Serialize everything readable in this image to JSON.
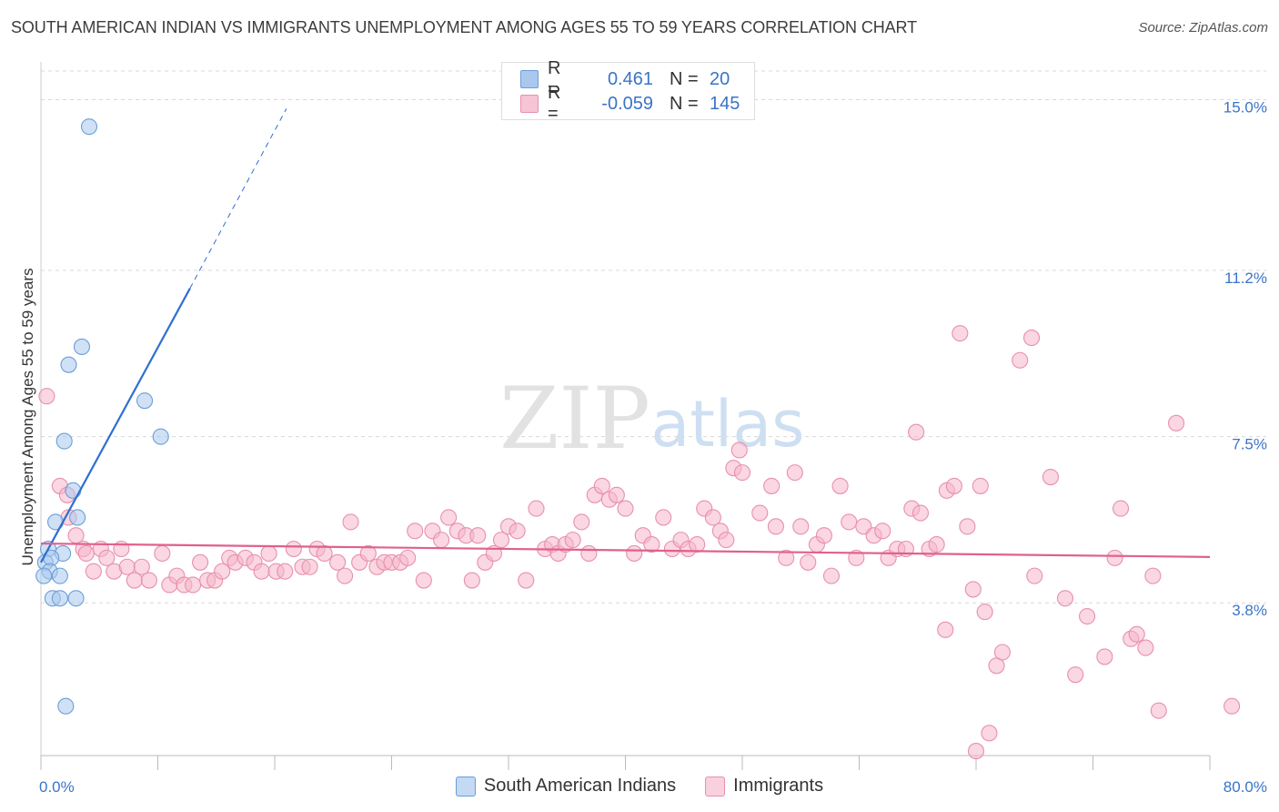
{
  "title": "SOUTH AMERICAN INDIAN VS IMMIGRANTS UNEMPLOYMENT AMONG AGES 55 TO 59 YEARS CORRELATION CHART",
  "source": "Source: ZipAtlas.com",
  "watermark": {
    "zip": "ZIP",
    "atlas": "atlas"
  },
  "legend": {
    "r_label": "R =",
    "n_label": "N =",
    "rows": [
      {
        "r": "0.461",
        "n": "20"
      },
      {
        "r": "-0.059",
        "n": "145"
      }
    ]
  },
  "colors": {
    "blue_fill": "#aac8ee",
    "blue_stroke": "#6a9fd8",
    "blue_line": "#2f6fd0",
    "pink_fill": "#f6b7cb",
    "pink_stroke": "#e890ac",
    "pink_line": "#e0608e",
    "axis_text": "#3a74c8",
    "grid": "#d8d8d8"
  },
  "chart_data": {
    "type": "scatter",
    "title": "SOUTH AMERICAN INDIAN VS IMMIGRANTS UNEMPLOYMENT AMONG AGES 55 TO 59 YEARS CORRELATION CHART",
    "xlabel": "",
    "ylabel": "Unemployment Among Ages 55 to 59 years",
    "xlim": [
      0,
      80
    ],
    "ylim": [
      0.4,
      15.7
    ],
    "x_tick_labels": [
      {
        "value": 0,
        "label": "0.0%"
      },
      {
        "value": 80,
        "label": "80.0%"
      }
    ],
    "y_tick_labels": [
      {
        "value": 3.8,
        "label": "3.8%"
      },
      {
        "value": 7.5,
        "label": "7.5%"
      },
      {
        "value": 11.2,
        "label": "11.2%"
      },
      {
        "value": 15.0,
        "label": "15.0%"
      }
    ],
    "x_ticks": [
      0,
      8,
      16,
      24,
      32,
      40,
      48,
      56,
      64,
      72,
      80
    ],
    "grid": true,
    "legend_position": "top-center",
    "series": [
      {
        "name": "South American Indians",
        "r": 0.461,
        "n": 20,
        "trend": {
          "x0": 0.0,
          "y0": 4.7,
          "x1": 10.2,
          "y1": 10.8,
          "dash_to_x": 16.8,
          "dash_to_y": 14.8
        },
        "points": [
          [
            3.3,
            14.4
          ],
          [
            2.8,
            9.5
          ],
          [
            1.9,
            9.1
          ],
          [
            7.1,
            8.3
          ],
          [
            8.2,
            7.5
          ],
          [
            1.6,
            7.4
          ],
          [
            2.2,
            6.3
          ],
          [
            2.5,
            5.7
          ],
          [
            1.0,
            5.6
          ],
          [
            0.5,
            5.0
          ],
          [
            1.5,
            4.9
          ],
          [
            0.3,
            4.7
          ],
          [
            0.7,
            4.8
          ],
          [
            0.6,
            4.5
          ],
          [
            0.2,
            4.4
          ],
          [
            1.3,
            4.4
          ],
          [
            0.8,
            3.9
          ],
          [
            1.3,
            3.9
          ],
          [
            2.4,
            3.9
          ],
          [
            1.7,
            1.5
          ]
        ]
      },
      {
        "name": "Immigrants",
        "r": -0.059,
        "n": 145,
        "trend": {
          "x0": 0.0,
          "y0": 5.12,
          "x1": 80.0,
          "y1": 4.82
        },
        "points": [
          [
            0.4,
            8.4
          ],
          [
            1.3,
            6.4
          ],
          [
            1.8,
            6.2
          ],
          [
            1.9,
            5.7
          ],
          [
            2.4,
            5.3
          ],
          [
            2.9,
            5.0
          ],
          [
            3.1,
            4.9
          ],
          [
            3.6,
            4.5
          ],
          [
            4.1,
            5.0
          ],
          [
            4.5,
            4.8
          ],
          [
            5.0,
            4.5
          ],
          [
            5.5,
            5.0
          ],
          [
            5.9,
            4.6
          ],
          [
            6.4,
            4.3
          ],
          [
            6.9,
            4.6
          ],
          [
            7.4,
            4.3
          ],
          [
            8.3,
            4.9
          ],
          [
            8.8,
            4.2
          ],
          [
            9.3,
            4.4
          ],
          [
            9.8,
            4.2
          ],
          [
            10.4,
            4.2
          ],
          [
            10.9,
            4.7
          ],
          [
            11.4,
            4.3
          ],
          [
            11.9,
            4.3
          ],
          [
            12.4,
            4.5
          ],
          [
            12.9,
            4.8
          ],
          [
            13.3,
            4.7
          ],
          [
            14.0,
            4.8
          ],
          [
            14.6,
            4.7
          ],
          [
            15.1,
            4.5
          ],
          [
            15.6,
            4.9
          ],
          [
            16.1,
            4.5
          ],
          [
            16.7,
            4.5
          ],
          [
            17.3,
            5.0
          ],
          [
            17.9,
            4.6
          ],
          [
            18.4,
            4.6
          ],
          [
            18.9,
            5.0
          ],
          [
            19.4,
            4.9
          ],
          [
            20.3,
            4.7
          ],
          [
            20.8,
            4.4
          ],
          [
            21.2,
            5.6
          ],
          [
            21.8,
            4.7
          ],
          [
            22.4,
            4.9
          ],
          [
            23.0,
            4.6
          ],
          [
            23.5,
            4.7
          ],
          [
            24.0,
            4.7
          ],
          [
            24.6,
            4.7
          ],
          [
            25.1,
            4.8
          ],
          [
            25.6,
            5.4
          ],
          [
            26.2,
            4.3
          ],
          [
            26.8,
            5.4
          ],
          [
            27.4,
            5.2
          ],
          [
            27.9,
            5.7
          ],
          [
            28.5,
            5.4
          ],
          [
            29.1,
            5.3
          ],
          [
            29.5,
            4.3
          ],
          [
            29.9,
            5.3
          ],
          [
            30.4,
            4.7
          ],
          [
            31.0,
            4.9
          ],
          [
            31.5,
            5.2
          ],
          [
            32.0,
            5.5
          ],
          [
            32.6,
            5.4
          ],
          [
            33.2,
            4.3
          ],
          [
            33.9,
            5.9
          ],
          [
            34.5,
            5.0
          ],
          [
            35.0,
            5.1
          ],
          [
            35.4,
            4.9
          ],
          [
            35.9,
            5.1
          ],
          [
            36.4,
            5.2
          ],
          [
            37.0,
            5.6
          ],
          [
            37.5,
            4.9
          ],
          [
            37.9,
            6.2
          ],
          [
            38.4,
            6.4
          ],
          [
            38.9,
            6.1
          ],
          [
            39.4,
            6.2
          ],
          [
            40.0,
            5.9
          ],
          [
            40.6,
            4.9
          ],
          [
            41.2,
            5.3
          ],
          [
            41.8,
            5.1
          ],
          [
            42.6,
            5.7
          ],
          [
            43.2,
            5.0
          ],
          [
            43.8,
            5.2
          ],
          [
            44.3,
            5.0
          ],
          [
            44.9,
            5.1
          ],
          [
            45.4,
            5.9
          ],
          [
            46.0,
            5.7
          ],
          [
            46.5,
            5.4
          ],
          [
            46.9,
            5.2
          ],
          [
            47.4,
            6.8
          ],
          [
            48.0,
            6.7
          ],
          [
            47.8,
            7.2
          ],
          [
            49.2,
            5.8
          ],
          [
            50.0,
            6.4
          ],
          [
            50.3,
            5.5
          ],
          [
            51.0,
            4.8
          ],
          [
            51.6,
            6.7
          ],
          [
            52.0,
            5.5
          ],
          [
            52.5,
            4.7
          ],
          [
            53.1,
            5.1
          ],
          [
            53.6,
            5.3
          ],
          [
            54.1,
            4.4
          ],
          [
            54.7,
            6.4
          ],
          [
            55.3,
            5.6
          ],
          [
            55.8,
            4.8
          ],
          [
            56.3,
            5.5
          ],
          [
            57.0,
            5.3
          ],
          [
            57.6,
            5.4
          ],
          [
            58.0,
            4.8
          ],
          [
            58.6,
            5.0
          ],
          [
            59.2,
            5.0
          ],
          [
            59.6,
            5.9
          ],
          [
            59.9,
            7.6
          ],
          [
            60.2,
            5.8
          ],
          [
            60.8,
            5.0
          ],
          [
            61.3,
            5.1
          ],
          [
            62.0,
            6.3
          ],
          [
            62.5,
            6.4
          ],
          [
            61.9,
            3.2
          ],
          [
            62.9,
            9.8
          ],
          [
            63.4,
            5.5
          ],
          [
            63.8,
            4.1
          ],
          [
            64.3,
            6.4
          ],
          [
            64.6,
            3.6
          ],
          [
            64.9,
            0.9
          ],
          [
            65.4,
            2.4
          ],
          [
            64.0,
            0.5
          ],
          [
            65.8,
            2.7
          ],
          [
            67.0,
            9.2
          ],
          [
            67.8,
            9.7
          ],
          [
            68.0,
            4.4
          ],
          [
            69.1,
            6.6
          ],
          [
            70.1,
            3.9
          ],
          [
            70.8,
            2.2
          ],
          [
            71.6,
            3.5
          ],
          [
            72.8,
            2.6
          ],
          [
            73.5,
            4.8
          ],
          [
            73.9,
            5.9
          ],
          [
            74.6,
            3.0
          ],
          [
            75.0,
            3.1
          ],
          [
            75.6,
            2.8
          ],
          [
            76.1,
            4.4
          ],
          [
            77.7,
            7.8
          ],
          [
            81.5,
            1.5
          ],
          [
            76.5,
            1.4
          ]
        ]
      }
    ]
  }
}
